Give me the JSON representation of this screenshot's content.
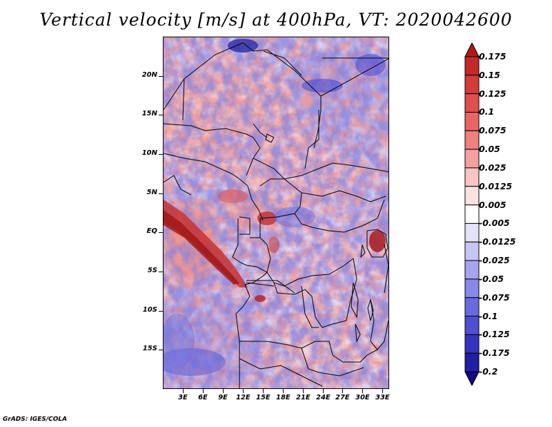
{
  "title": "Vertical velocity [m/s] at 400hPa, VT: 2020042600",
  "credit": "GrADS: IGES/COLA",
  "map": {
    "lon_range": [
      0,
      34
    ],
    "lat_range": [
      -20,
      25
    ],
    "lat_ticks": [
      {
        "value": 20,
        "label": "20N"
      },
      {
        "value": 15,
        "label": "15N"
      },
      {
        "value": 10,
        "label": "10N"
      },
      {
        "value": 5,
        "label": "5N"
      },
      {
        "value": 0,
        "label": "EQ"
      },
      {
        "value": -5,
        "label": "5S"
      },
      {
        "value": -10,
        "label": "10S"
      },
      {
        "value": -15,
        "label": "15S"
      }
    ],
    "lon_ticks": [
      {
        "value": 3,
        "label": "3E"
      },
      {
        "value": 6,
        "label": "6E"
      },
      {
        "value": 9,
        "label": "9E"
      },
      {
        "value": 12,
        "label": "12E"
      },
      {
        "value": 15,
        "label": "15E"
      },
      {
        "value": 18,
        "label": "18E"
      },
      {
        "value": 21,
        "label": "21E"
      },
      {
        "value": 24,
        "label": "24E"
      },
      {
        "value": 27,
        "label": "27E"
      },
      {
        "value": 30,
        "label": "30E"
      },
      {
        "value": 33,
        "label": "33E"
      }
    ]
  },
  "colorbar": {
    "labels": [
      "0.175",
      "0.15",
      "0.125",
      "0.1",
      "0.075",
      "0.05",
      "0.025",
      "0.0125",
      "0.005",
      "-0.005",
      "-0.0125",
      "-0.025",
      "-0.05",
      "-0.075",
      "-0.1",
      "-0.125",
      "-0.175",
      "-0.2"
    ],
    "colors": [
      "#b01818",
      "#c42a2a",
      "#d43b3b",
      "#e04e4e",
      "#e86565",
      "#ef8080",
      "#f4a0a0",
      "#f9c4c4",
      "#fde2e2",
      "#ffffff",
      "#e2e2fb",
      "#c6c6f4",
      "#a6a6ee",
      "#8888e8",
      "#6a6ade",
      "#4f4fd2",
      "#3434bc",
      "#2020a4",
      "#100a88"
    ]
  }
}
